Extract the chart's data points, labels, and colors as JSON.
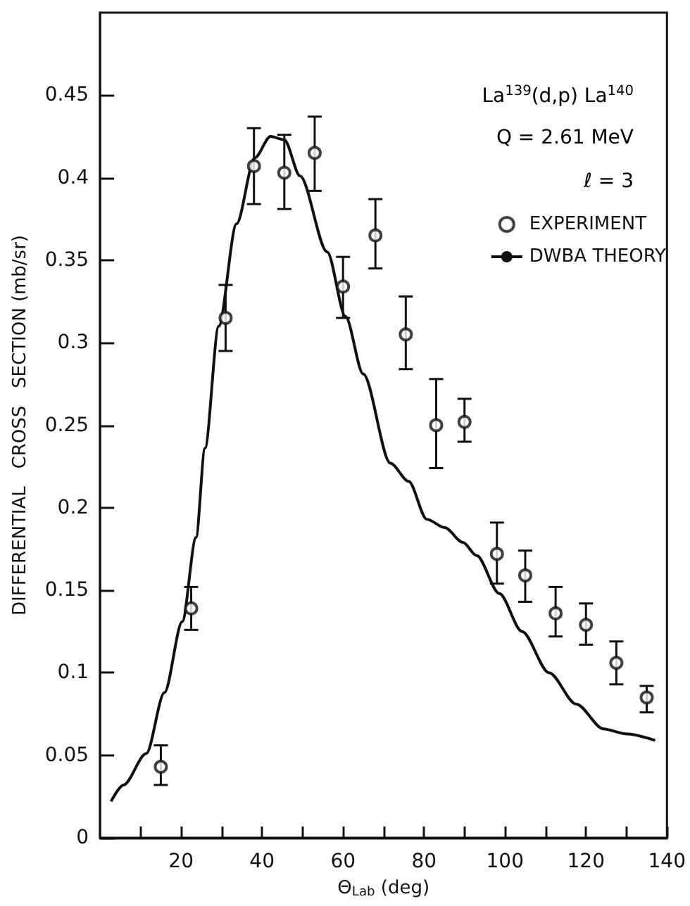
{
  "chart_data": {
    "type": "scatter",
    "xlabel": "Θ$_{Lab}$ (deg)",
    "ylabel": "DIFFERENTIAL   CROSS   SECTION (mb/sr)",
    "annotations": [
      "La$^{139}$(d,p) La$^{140}$",
      "Q = 2.61 MeV",
      "ℓ = 3"
    ],
    "xlim": [
      0,
      140
    ],
    "xticks": [
      {
        "value": 10,
        "label": null
      },
      20,
      {
        "value": 30,
        "label": null
      },
      40,
      {
        "value": 50,
        "label": null
      },
      60,
      {
        "value": 70,
        "label": null
      },
      80,
      {
        "value": 90,
        "label": null
      },
      100,
      {
        "value": 110,
        "label": null
      },
      120,
      {
        "value": 130,
        "label": null
      },
      140
    ],
    "ylim": [
      0,
      0.5
    ],
    "yticks": [
      0,
      0.05,
      0.1,
      0.15,
      0.2,
      0.25,
      0.3,
      0.35,
      0.4,
      0.45
    ],
    "legend": "top right",
    "series": [
      {
        "name": "EXPERIMENT",
        "marker": "circle",
        "color": "#111111",
        "x": [
          15,
          22.5,
          31,
          38,
          45.5,
          53,
          60,
          68,
          75.5,
          83,
          90,
          98,
          105,
          112.5,
          120,
          127.5,
          135
        ],
        "values": [
          0.043,
          0.139,
          0.315,
          0.407,
          0.403,
          0.415,
          0.334,
          0.365,
          0.305,
          0.25,
          0.252,
          0.172,
          0.159,
          0.136,
          0.129,
          0.106,
          0.085
        ],
        "errors": [
          [
            0.032,
            0.056
          ],
          [
            0.126,
            0.152
          ],
          [
            0.295,
            0.335
          ],
          [
            0.384,
            0.43
          ],
          [
            0.381,
            0.426
          ],
          [
            0.392,
            0.437
          ],
          [
            0.315,
            0.352
          ],
          [
            0.345,
            0.387
          ],
          [
            0.284,
            0.328
          ],
          [
            0.224,
            0.278
          ],
          [
            0.24,
            0.266
          ],
          [
            0.154,
            0.191
          ],
          [
            0.143,
            0.174
          ],
          [
            0.122,
            0.152
          ],
          [
            0.117,
            0.142
          ],
          [
            0.093,
            0.119
          ],
          [
            0.076,
            0.092
          ]
        ]
      },
      {
        "name": "DWBA THEORY",
        "type": "line",
        "marker": "none",
        "line_style": "solid",
        "color": "#111111",
        "x": [
          2.7,
          5.8,
          11.4,
          15.9,
          20.3,
          23.7,
          25.9,
          29.3,
          33.7,
          38.2,
          42.1,
          45.5,
          49.4,
          56.1,
          60.6,
          65,
          71.7,
          76.2,
          80.7,
          85.1,
          89.6,
          93,
          98.6,
          104.2,
          110.9,
          117.6,
          124.3,
          129.8,
          137.1
        ],
        "values": [
          0.022,
          0.032,
          0.051,
          0.088,
          0.131,
          0.182,
          0.236,
          0.31,
          0.372,
          0.412,
          0.425,
          0.423,
          0.401,
          0.355,
          0.316,
          0.281,
          0.227,
          0.216,
          0.193,
          0.188,
          0.179,
          0.171,
          0.148,
          0.125,
          0.1,
          0.081,
          0.066,
          0.063,
          0.059
        ]
      }
    ]
  }
}
